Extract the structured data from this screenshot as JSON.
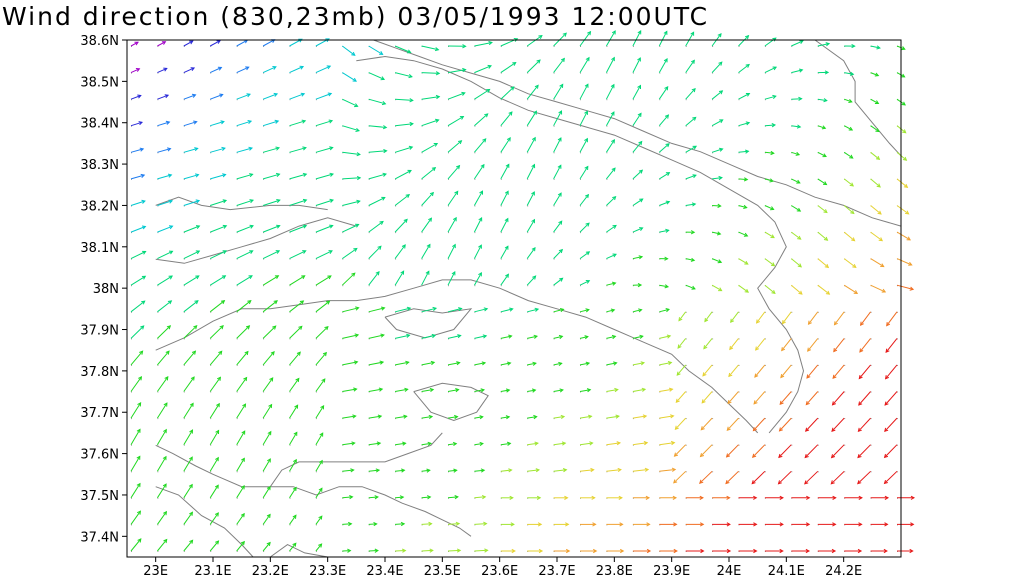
{
  "title": "Wind direction (830,23mb) 03/05/1993 12:00UTC",
  "map_data": {
    "type": "vector-field",
    "x_range": [
      22.95,
      24.3
    ],
    "y_range": [
      37.35,
      38.6
    ],
    "x_ticks": [
      "23E",
      "23.1E",
      "23.2E",
      "23.3E",
      "23.4E",
      "23.5E",
      "23.6E",
      "23.7E",
      "23.8E",
      "23.9E",
      "24E",
      "24.1E",
      "24.2E"
    ],
    "x_tick_values": [
      23.0,
      23.1,
      23.2,
      23.3,
      23.4,
      23.5,
      23.6,
      23.7,
      23.8,
      23.9,
      24.0,
      24.1,
      24.2
    ],
    "y_ticks": [
      "38.6N",
      "38.5N",
      "38.4N",
      "38.3N",
      "38.2N",
      "38.1N",
      "38N",
      "37.9N",
      "37.8N",
      "37.7N",
      "37.6N",
      "37.5N",
      "37.4N"
    ],
    "y_tick_values": [
      38.6,
      38.5,
      38.4,
      38.3,
      38.2,
      38.1,
      38.0,
      37.9,
      37.8,
      37.7,
      37.6,
      37.5,
      37.4
    ],
    "colors": {
      "coastline": "#808080",
      "frame": "#000000",
      "grid_dots": "#9a9a9a",
      "ramp": [
        "#a000c8",
        "#2828d8",
        "#1e7cf0",
        "#00c8d0",
        "#00d878",
        "#20d820",
        "#a0e632",
        "#e6d232",
        "#f0a030",
        "#f06c20",
        "#e61818"
      ]
    },
    "coastlines": [
      [
        [
          23.0,
          37.52
        ],
        [
          23.04,
          37.5
        ],
        [
          23.08,
          37.45
        ],
        [
          23.12,
          37.42
        ],
        [
          23.15,
          37.38
        ],
        [
          23.17,
          37.35
        ]
      ],
      [
        [
          23.2,
          37.35
        ],
        [
          23.23,
          37.38
        ],
        [
          23.26,
          37.36
        ],
        [
          23.3,
          37.35
        ]
      ],
      [
        [
          23.0,
          37.62
        ],
        [
          23.03,
          37.6
        ],
        [
          23.07,
          37.57
        ],
        [
          23.1,
          37.55
        ],
        [
          23.15,
          37.52
        ],
        [
          23.2,
          37.52
        ],
        [
          23.24,
          37.52
        ],
        [
          23.28,
          37.5
        ],
        [
          23.32,
          37.52
        ],
        [
          23.36,
          37.52
        ],
        [
          23.4,
          37.5
        ],
        [
          23.43,
          37.48
        ],
        [
          23.47,
          37.46
        ],
        [
          23.5,
          37.44
        ],
        [
          23.53,
          37.42
        ],
        [
          23.55,
          37.4
        ]
      ],
      [
        [
          23.2,
          37.52
        ],
        [
          23.22,
          37.56
        ],
        [
          23.25,
          37.58
        ],
        [
          23.3,
          37.58
        ],
        [
          23.35,
          37.58
        ],
        [
          23.4,
          37.58
        ],
        [
          23.44,
          37.6
        ],
        [
          23.48,
          37.62
        ],
        [
          23.5,
          37.65
        ]
      ],
      [
        [
          23.0,
          37.85
        ],
        [
          23.05,
          37.88
        ],
        [
          23.1,
          37.92
        ],
        [
          23.15,
          37.95
        ],
        [
          23.2,
          37.95
        ],
        [
          23.25,
          37.96
        ],
        [
          23.3,
          37.97
        ],
        [
          23.35,
          37.97
        ],
        [
          23.4,
          37.98
        ],
        [
          23.45,
          38.0
        ],
        [
          23.5,
          38.02
        ],
        [
          23.55,
          38.02
        ],
        [
          23.6,
          38.0
        ],
        [
          23.65,
          37.97
        ],
        [
          23.7,
          37.95
        ],
        [
          23.75,
          37.93
        ],
        [
          23.8,
          37.9
        ],
        [
          23.85,
          37.87
        ],
        [
          23.9,
          37.84
        ],
        [
          23.93,
          37.8
        ],
        [
          23.97,
          37.76
        ],
        [
          24.0,
          37.72
        ],
        [
          24.03,
          37.68
        ],
        [
          24.05,
          37.65
        ]
      ],
      [
        [
          23.45,
          37.75
        ],
        [
          23.5,
          37.77
        ],
        [
          23.55,
          37.76
        ],
        [
          23.58,
          37.74
        ],
        [
          23.56,
          37.7
        ],
        [
          23.52,
          37.68
        ],
        [
          23.48,
          37.7
        ],
        [
          23.45,
          37.75
        ]
      ],
      [
        [
          23.4,
          37.93
        ],
        [
          23.45,
          37.95
        ],
        [
          23.5,
          37.94
        ],
        [
          23.55,
          37.95
        ],
        [
          23.52,
          37.9
        ],
        [
          23.47,
          37.88
        ],
        [
          23.42,
          37.9
        ],
        [
          23.4,
          37.93
        ]
      ],
      [
        [
          23.0,
          38.07
        ],
        [
          23.05,
          38.06
        ],
        [
          23.1,
          38.08
        ],
        [
          23.15,
          38.1
        ],
        [
          23.2,
          38.12
        ],
        [
          23.25,
          38.15
        ],
        [
          23.3,
          38.17
        ],
        [
          23.35,
          38.15
        ]
      ],
      [
        [
          23.0,
          38.2
        ],
        [
          23.04,
          38.22
        ],
        [
          23.08,
          38.2
        ],
        [
          23.13,
          38.19
        ],
        [
          23.2,
          38.2
        ],
        [
          23.25,
          38.2
        ],
        [
          23.3,
          38.19
        ]
      ],
      [
        [
          23.38,
          38.6
        ],
        [
          23.42,
          38.58
        ],
        [
          23.46,
          38.56
        ],
        [
          23.5,
          38.54
        ],
        [
          23.55,
          38.52
        ],
        [
          23.6,
          38.5
        ],
        [
          23.65,
          38.47
        ],
        [
          23.7,
          38.45
        ],
        [
          23.75,
          38.43
        ],
        [
          23.8,
          38.41
        ],
        [
          23.85,
          38.38
        ],
        [
          23.9,
          38.35
        ],
        [
          23.95,
          38.33
        ],
        [
          24.0,
          38.3
        ],
        [
          24.05,
          38.27
        ],
        [
          24.1,
          38.25
        ],
        [
          24.15,
          38.22
        ],
        [
          24.2,
          38.2
        ],
        [
          24.25,
          38.17
        ],
        [
          24.3,
          38.15
        ]
      ],
      [
        [
          23.35,
          38.55
        ],
        [
          23.4,
          38.56
        ],
        [
          23.45,
          38.55
        ],
        [
          23.5,
          38.53
        ],
        [
          23.55,
          38.5
        ],
        [
          23.6,
          38.46
        ],
        [
          23.65,
          38.43
        ],
        [
          23.7,
          38.41
        ],
        [
          23.75,
          38.39
        ],
        [
          23.8,
          38.37
        ],
        [
          23.85,
          38.34
        ],
        [
          23.9,
          38.31
        ],
        [
          23.95,
          38.28
        ],
        [
          24.0,
          38.24
        ],
        [
          24.05,
          38.2
        ],
        [
          24.08,
          38.16
        ],
        [
          24.1,
          38.1
        ],
        [
          24.08,
          38.05
        ],
        [
          24.05,
          38.0
        ],
        [
          24.07,
          37.95
        ],
        [
          24.1,
          37.9
        ],
        [
          24.12,
          37.85
        ],
        [
          24.13,
          37.8
        ],
        [
          24.12,
          37.75
        ],
        [
          24.1,
          37.7
        ],
        [
          24.07,
          37.65
        ]
      ],
      [
        [
          24.15,
          38.6
        ],
        [
          24.2,
          38.55
        ],
        [
          24.22,
          38.5
        ],
        [
          24.22,
          38.45
        ],
        [
          24.25,
          38.4
        ],
        [
          24.28,
          38.35
        ],
        [
          24.3,
          38.32
        ]
      ]
    ]
  }
}
